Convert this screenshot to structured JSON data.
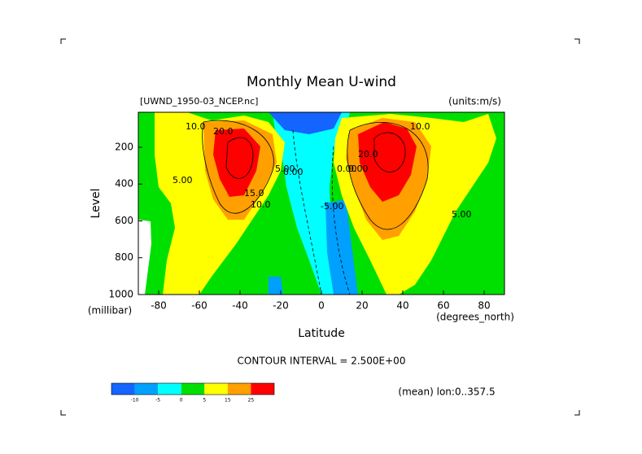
{
  "chart_data": {
    "type": "contour",
    "title": "Monthly Mean U-wind",
    "subtitle_left": "[UWND_1950-03_NCEP.nc]",
    "subtitle_right": "(units:m/s)",
    "y_label": "Level",
    "y_units": "(millibar)",
    "x_label": "Latitude",
    "x_units": "(degrees_north)",
    "contour_note": "CONTOUR INTERVAL = 2.500E+00",
    "footnote": "(mean) lon:0..357.5",
    "xlim": [
      -90,
      90
    ],
    "xticks": [
      -80,
      -60,
      -40,
      -20,
      0,
      20,
      40,
      60,
      80
    ],
    "ylim": [
      1000,
      10
    ],
    "yticks": [
      200,
      400,
      600,
      800,
      1000
    ],
    "colorbar": {
      "colors": [
        "#1464ff",
        "#00a0ff",
        "#00ffff",
        "#00e000",
        "#ffff00",
        "#ffa000",
        "#ff0000"
      ],
      "ticks": [
        -10,
        -5,
        0,
        5,
        15,
        25
      ]
    },
    "contour_labels": [
      "10.0",
      "20.0",
      "5.00",
      "15.0",
      "10.0",
      "5.00",
      "0.00",
      "0.00",
      "0.00",
      "-5.00",
      "20.0",
      "10.0",
      "5.00"
    ]
  }
}
